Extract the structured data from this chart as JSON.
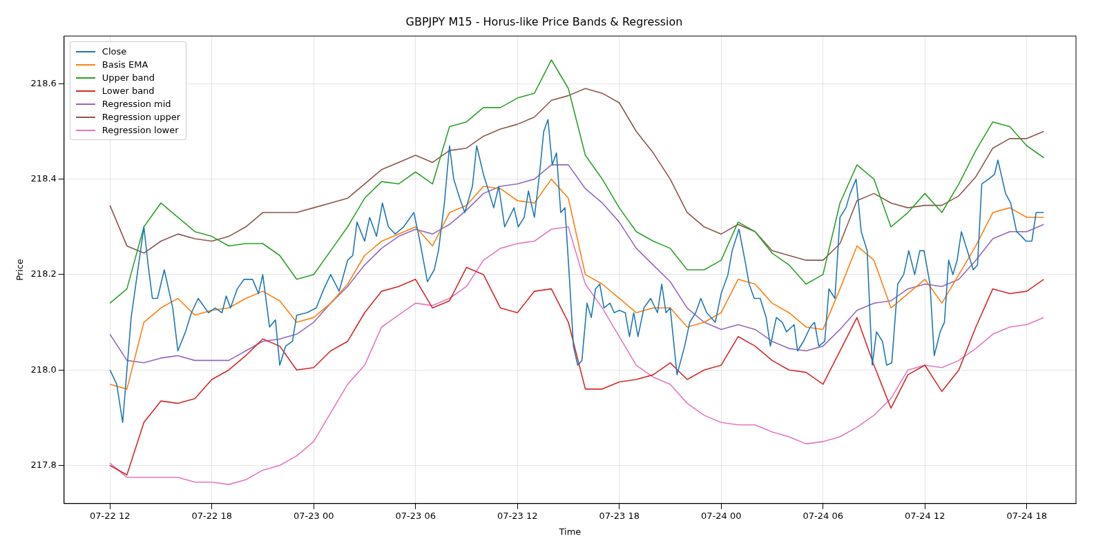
{
  "chart_data": {
    "type": "line",
    "title": "GBPJPY M15 - Horus-like Price Bands & Regression",
    "xlabel": "Time",
    "ylabel": "Price",
    "x": [
      "--07-22T12:00",
      "--07-22T13:00",
      "--07-22T14:00",
      "--07-22T15:00",
      "--07-22T16:00",
      "--07-22T17:00",
      "--07-22T18:00",
      "--07-22T19:00",
      "--07-22T20:00",
      "--07-22T21:00",
      "--07-22T22:00",
      "--07-22T23:00",
      "--07-23T00:00",
      "--07-23T01:00",
      "--07-23T02:00",
      "--07-23T03:00",
      "--07-23T04:00",
      "--07-23T05:00",
      "--07-23T06:00",
      "--07-23T07:00",
      "--07-23T08:00",
      "--07-23T09:00",
      "--07-23T10:00",
      "--07-23T11:00",
      "--07-23T12:00",
      "--07-23T13:00",
      "--07-23T14:00",
      "--07-23T15:00",
      "--07-23T16:00",
      "--07-23T17:00",
      "--07-23T18:00",
      "--07-23T19:00",
      "--07-23T20:00",
      "--07-23T21:00",
      "--07-23T22:00",
      "--07-23T23:00",
      "--07-24T00:00",
      "--07-24T01:00",
      "--07-24T02:00",
      "--07-24T03:00",
      "--07-24T04:00",
      "--07-24T05:00",
      "--07-24T06:00",
      "--07-24T07:00",
      "--07-24T08:00",
      "--07-24T09:00",
      "--07-24T10:00",
      "--07-24T11:00",
      "--07-24T12:00",
      "--07-24T13:00",
      "--07-24T14:00",
      "--07-24T15:00",
      "--07-24T16:00",
      "--07-24T17:00",
      "--07-24T18:00",
      "--07-24T19:00"
    ],
    "xlim": [
      "--07-22T09:18",
      "--07-24T20:54"
    ],
    "xticks": [
      {
        "value": "--07-22T12:00",
        "label": "07-22 12"
      },
      {
        "value": "--07-22T18:00",
        "label": "07-22 18"
      },
      {
        "value": "--07-23T00:00",
        "label": "07-23 00"
      },
      {
        "value": "--07-23T06:00",
        "label": "07-23 06"
      },
      {
        "value": "--07-23T12:00",
        "label": "07-23 12"
      },
      {
        "value": "--07-23T18:00",
        "label": "07-23 18"
      },
      {
        "value": "--07-24T00:00",
        "label": "07-24 00"
      },
      {
        "value": "--07-24T06:00",
        "label": "07-24 06"
      },
      {
        "value": "--07-24T12:00",
        "label": "07-24 12"
      },
      {
        "value": "--07-24T18:00",
        "label": "07-24 18"
      }
    ],
    "ylim": [
      217.72,
      218.7
    ],
    "yticks": [
      {
        "value": 217.8,
        "label": "217.8"
      },
      {
        "value": 218,
        "label": "218.0"
      },
      {
        "value": 218.2,
        "label": "218.2"
      },
      {
        "value": 218.4,
        "label": "218.4"
      },
      {
        "value": 218.6,
        "label": "218.6"
      }
    ],
    "grid": true,
    "legend": "top left",
    "marker": "none",
    "line_style": "solid",
    "series": [
      {
        "name": "Close",
        "color": "#1f77b4",
        "x": [
          "--07-22T12:00",
          "--07-22T12:24",
          "--07-22T12:45",
          "--07-22T13:15",
          "--07-22T14:00",
          "--07-22T14:15",
          "--07-22T14:30",
          "--07-22T14:48",
          "--07-22T15:12",
          "--07-22T15:42",
          "--07-22T16:00",
          "--07-22T16:27",
          "--07-22T16:48",
          "--07-22T17:12",
          "--07-22T17:48",
          "--07-22T18:12",
          "--07-22T18:36",
          "--07-22T18:51",
          "--07-22T19:06",
          "--07-22T19:30",
          "--07-22T19:54",
          "--07-22T20:24",
          "--07-22T20:45",
          "--07-22T21:00",
          "--07-22T21:24",
          "--07-22T21:45",
          "--07-22T22:00",
          "--07-22T22:21",
          "--07-22T22:45",
          "--07-22T23:00",
          "--07-22T23:36",
          "--07-23T00:09",
          "--07-23T00:36",
          "--07-23T01:00",
          "--07-23T01:30",
          "--07-23T02:00",
          "--07-23T02:18",
          "--07-23T02:33",
          "--07-23T03:00",
          "--07-23T03:18",
          "--07-23T03:42",
          "--07-23T04:03",
          "--07-23T04:24",
          "--07-23T04:48",
          "--07-23T05:18",
          "--07-23T05:54",
          "--07-23T06:12",
          "--07-23T06:42",
          "--07-23T07:06",
          "--07-23T07:21",
          "--07-23T07:42",
          "--07-23T08:00",
          "--07-23T08:15",
          "--07-23T08:36",
          "--07-23T08:54",
          "--07-23T09:21",
          "--07-23T09:36",
          "--07-23T10:00",
          "--07-23T10:21",
          "--07-23T10:36",
          "--07-23T10:54",
          "--07-23T11:15",
          "--07-23T11:48",
          "--07-23T12:03",
          "--07-23T12:24",
          "--07-23T12:39",
          "--07-23T13:00",
          "--07-23T13:18",
          "--07-23T13:33",
          "--07-23T13:48",
          "--07-23T14:03",
          "--07-23T14:18",
          "--07-23T14:33",
          "--07-23T14:48",
          "--07-23T15:03",
          "--07-23T15:18",
          "--07-23T15:33",
          "--07-23T15:48",
          "--07-23T16:06",
          "--07-23T16:21",
          "--07-23T16:36",
          "--07-23T16:51",
          "--07-23T17:06",
          "--07-23T17:27",
          "--07-23T17:42",
          "--07-23T18:00",
          "--07-23T18:21",
          "--07-23T18:36",
          "--07-23T18:51",
          "--07-23T19:06",
          "--07-23T19:27",
          "--07-23T19:51",
          "--07-23T20:15",
          "--07-23T20:30",
          "--07-23T20:45",
          "--07-23T21:00",
          "--07-23T21:24",
          "--07-23T21:51",
          "--07-23T22:09",
          "--07-23T22:30",
          "--07-23T22:48",
          "--07-23T23:09",
          "--07-23T23:39",
          "--07-24T00:00",
          "--07-24T00:24",
          "--07-24T00:39",
          "--07-24T01:03",
          "--07-24T01:24",
          "--07-24T01:39",
          "--07-24T01:57",
          "--07-24T02:18",
          "--07-24T02:39",
          "--07-24T02:54",
          "--07-24T03:15",
          "--07-24T03:36",
          "--07-24T03:51",
          "--07-24T04:18",
          "--07-24T04:30",
          "--07-24T04:51",
          "--07-24T05:15",
          "--07-24T05:30",
          "--07-24T05:45",
          "--07-24T06:06",
          "--07-24T06:21",
          "--07-24T06:42",
          "--07-24T07:00",
          "--07-24T07:21",
          "--07-24T07:36",
          "--07-24T07:57",
          "--07-24T08:15",
          "--07-24T08:36",
          "--07-24T08:54",
          "--07-24T09:09",
          "--07-24T09:30",
          "--07-24T09:45",
          "--07-24T10:03",
          "--07-24T10:24",
          "--07-24T10:45",
          "--07-24T11:03",
          "--07-24T11:24",
          "--07-24T11:42",
          "--07-24T11:57",
          "--07-24T12:18",
          "--07-24T12:33",
          "--07-24T12:54",
          "--07-24T13:09",
          "--07-24T13:24",
          "--07-24T13:39",
          "--07-24T13:54",
          "--07-24T14:09",
          "--07-24T14:30",
          "--07-24T14:51",
          "--07-24T15:06",
          "--07-24T15:21",
          "--07-24T15:45",
          "--07-24T16:06",
          "--07-24T16:18",
          "--07-24T16:45",
          "--07-24T17:03",
          "--07-24T17:24",
          "--07-24T17:42",
          "--07-24T17:57",
          "--07-24T18:18",
          "--07-24T18:33",
          "--07-24T18:48",
          "--07-24T19:00"
        ],
        "values": [
          218.0,
          217.97,
          217.89,
          218.11,
          218.3,
          218.22,
          218.15,
          218.15,
          218.21,
          218.13,
          218.04,
          218.08,
          218.12,
          218.15,
          218.12,
          218.13,
          218.12,
          218.155,
          218.13,
          218.17,
          218.19,
          218.19,
          218.16,
          218.2,
          218.09,
          218.105,
          218.01,
          218.05,
          218.06,
          218.115,
          218.12,
          218.13,
          218.17,
          218.2,
          218.165,
          218.23,
          218.24,
          218.31,
          218.27,
          218.32,
          218.28,
          218.35,
          218.3,
          218.285,
          218.3,
          218.33,
          218.28,
          218.185,
          218.21,
          218.25,
          218.35,
          218.47,
          218.4,
          218.36,
          218.33,
          218.385,
          218.47,
          218.41,
          218.37,
          218.34,
          218.385,
          218.3,
          218.34,
          218.3,
          218.32,
          218.375,
          218.32,
          218.41,
          218.5,
          218.525,
          218.43,
          218.455,
          218.33,
          218.34,
          218.2,
          218.05,
          218.01,
          218.02,
          218.14,
          218.11,
          218.17,
          218.18,
          218.13,
          218.14,
          218.12,
          218.125,
          218.12,
          218.07,
          218.12,
          218.07,
          218.13,
          218.15,
          218.12,
          218.18,
          218.12,
          218.13,
          217.99,
          218.05,
          218.1,
          218.12,
          218.15,
          218.12,
          218.1,
          218.16,
          218.2,
          218.25,
          218.295,
          218.23,
          218.18,
          218.15,
          218.15,
          218.11,
          218.05,
          218.11,
          218.1,
          218.08,
          218.095,
          218.04,
          218.06,
          218.09,
          218.1,
          218.05,
          218.06,
          218.17,
          218.15,
          218.32,
          218.34,
          218.37,
          218.4,
          218.29,
          218.25,
          218.01,
          218.08,
          218.06,
          218.01,
          218.015,
          218.18,
          218.2,
          218.25,
          218.2,
          218.25,
          218.25,
          218.18,
          218.03,
          218.08,
          218.1,
          218.23,
          218.2,
          218.23,
          218.29,
          218.25,
          218.21,
          218.22,
          218.39,
          218.4,
          218.41,
          218.44,
          218.37,
          218.35,
          218.29,
          218.28,
          218.27,
          218.27,
          218.33,
          218.33,
          218.33
        ]
      },
      {
        "name": "Basis EMA",
        "color": "#ff7f0e",
        "values": [
          217.97,
          217.96,
          218.1,
          218.13,
          218.15,
          218.115,
          218.125,
          218.13,
          218.15,
          218.165,
          218.145,
          218.1,
          218.11,
          218.14,
          218.18,
          218.24,
          218.27,
          218.285,
          218.3,
          218.26,
          218.33,
          218.345,
          218.385,
          218.38,
          218.355,
          218.35,
          218.4,
          218.36,
          218.2,
          218.18,
          218.15,
          218.12,
          218.13,
          218.13,
          218.09,
          218.1,
          218.12,
          218.19,
          218.18,
          218.14,
          218.12,
          218.09,
          218.085,
          218.17,
          218.26,
          218.23,
          218.13,
          218.16,
          218.19,
          218.14,
          218.2,
          218.26,
          218.33,
          218.34,
          218.32,
          218.32
        ]
      },
      {
        "name": "Upper band",
        "color": "#2ca02c",
        "values": [
          218.14,
          218.17,
          218.3,
          218.35,
          218.32,
          218.29,
          218.28,
          218.26,
          218.265,
          218.265,
          218.24,
          218.19,
          218.2,
          218.25,
          218.3,
          218.36,
          218.395,
          218.39,
          218.415,
          218.39,
          218.51,
          218.52,
          218.55,
          218.55,
          218.57,
          218.58,
          218.65,
          218.59,
          218.45,
          218.4,
          218.34,
          218.29,
          218.27,
          218.255,
          218.21,
          218.21,
          218.23,
          218.31,
          218.29,
          218.245,
          218.22,
          218.18,
          218.2,
          218.35,
          218.43,
          218.4,
          218.3,
          218.33,
          218.37,
          218.33,
          218.39,
          218.46,
          218.52,
          218.51,
          218.47,
          218.445
        ]
      },
      {
        "name": "Lower band",
        "color": "#d62728",
        "values": [
          217.8,
          217.78,
          217.89,
          217.935,
          217.93,
          217.94,
          217.98,
          218.0,
          218.03,
          218.065,
          218.05,
          218.0,
          218.005,
          218.04,
          218.06,
          218.12,
          218.165,
          218.175,
          218.19,
          218.13,
          218.145,
          218.215,
          218.2,
          218.13,
          218.12,
          218.165,
          218.17,
          218.1,
          217.96,
          217.96,
          217.975,
          217.98,
          217.99,
          218.015,
          217.98,
          218.0,
          218.01,
          218.07,
          218.05,
          218.02,
          218.0,
          217.995,
          217.97,
          218.04,
          218.11,
          218.01,
          217.92,
          217.99,
          218.01,
          217.955,
          218.0,
          218.09,
          218.17,
          218.16,
          218.165,
          218.19
        ]
      },
      {
        "name": "Regression mid",
        "color": "#9467bd",
        "values": [
          218.075,
          218.02,
          218.015,
          218.025,
          218.03,
          218.02,
          218.02,
          218.02,
          218.04,
          218.06,
          218.065,
          218.075,
          218.1,
          218.14,
          218.175,
          218.22,
          218.255,
          218.28,
          218.295,
          218.285,
          218.305,
          218.335,
          218.37,
          218.385,
          218.39,
          218.4,
          218.43,
          218.43,
          218.38,
          218.35,
          218.31,
          218.255,
          218.22,
          218.185,
          218.13,
          218.1,
          218.085,
          218.095,
          218.085,
          218.06,
          218.045,
          218.04,
          218.05,
          218.085,
          218.125,
          218.14,
          218.145,
          218.17,
          218.18,
          218.175,
          218.19,
          218.23,
          218.275,
          218.29,
          218.29,
          218.305
        ]
      },
      {
        "name": "Regression upper",
        "color": "#8c564b",
        "values": [
          218.345,
          218.26,
          218.245,
          218.27,
          218.285,
          218.275,
          218.27,
          218.28,
          218.3,
          218.33,
          218.33,
          218.33,
          218.34,
          218.35,
          218.36,
          218.39,
          218.42,
          218.435,
          218.45,
          218.435,
          218.46,
          218.465,
          218.49,
          218.505,
          218.515,
          218.53,
          218.565,
          218.575,
          218.59,
          218.58,
          218.56,
          218.5,
          218.455,
          218.4,
          218.33,
          218.3,
          218.285,
          218.305,
          218.29,
          218.25,
          218.24,
          218.23,
          218.23,
          218.265,
          218.355,
          218.37,
          218.35,
          218.34,
          218.345,
          218.345,
          218.365,
          218.405,
          218.465,
          218.485,
          218.485,
          218.5
        ]
      },
      {
        "name": "Regression lower",
        "color": "#e377c2",
        "values": [
          217.805,
          217.775,
          217.775,
          217.775,
          217.775,
          217.765,
          217.765,
          217.76,
          217.77,
          217.79,
          217.8,
          217.82,
          217.85,
          217.91,
          217.97,
          218.01,
          218.09,
          218.115,
          218.14,
          218.135,
          218.15,
          218.175,
          218.23,
          218.255,
          218.265,
          218.27,
          218.295,
          218.3,
          218.18,
          218.13,
          218.07,
          218.01,
          217.985,
          217.97,
          217.93,
          217.905,
          217.89,
          217.885,
          217.885,
          217.87,
          217.86,
          217.845,
          217.85,
          217.86,
          217.88,
          217.905,
          217.94,
          218.0,
          218.01,
          218.005,
          218.02,
          218.045,
          218.075,
          218.09,
          218.095,
          218.11
        ]
      }
    ]
  }
}
